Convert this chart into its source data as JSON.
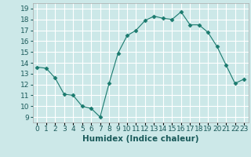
{
  "x": [
    0,
    1,
    2,
    3,
    4,
    5,
    6,
    7,
    8,
    9,
    10,
    11,
    12,
    13,
    14,
    15,
    16,
    17,
    18,
    19,
    20,
    21,
    22,
    23
  ],
  "y": [
    13.6,
    13.5,
    12.6,
    11.1,
    11.0,
    10.0,
    9.8,
    9.0,
    12.1,
    14.9,
    16.5,
    17.0,
    17.9,
    18.3,
    18.1,
    18.0,
    18.7,
    17.5,
    17.5,
    16.8,
    15.5,
    13.8,
    12.1,
    12.5
  ],
  "xlabel": "Humidex (Indice chaleur)",
  "xlim": [
    -0.5,
    23.5
  ],
  "ylim": [
    8.5,
    19.5
  ],
  "yticks": [
    9,
    10,
    11,
    12,
    13,
    14,
    15,
    16,
    17,
    18,
    19
  ],
  "xtick_positions": [
    0,
    1,
    2,
    3,
    4,
    5,
    6,
    7,
    8,
    9,
    10,
    11,
    12,
    13,
    14,
    15,
    16,
    17,
    18,
    19,
    20,
    21,
    22,
    23
  ],
  "xtick_labels": [
    "0",
    "1",
    "2",
    "3",
    "4",
    "5",
    "6",
    "7",
    "8",
    "9",
    "10",
    "11",
    "12",
    "13",
    "14",
    "15",
    "16",
    "17",
    "18",
    "19",
    "20",
    "21",
    "22",
    "23"
  ],
  "line_color": "#1a7a6e",
  "marker": "D",
  "marker_size": 2.5,
  "bg_color": "#cce8e8",
  "grid_color": "#ffffff",
  "xlabel_fontsize": 7.5,
  "tick_fontsize": 6.5
}
